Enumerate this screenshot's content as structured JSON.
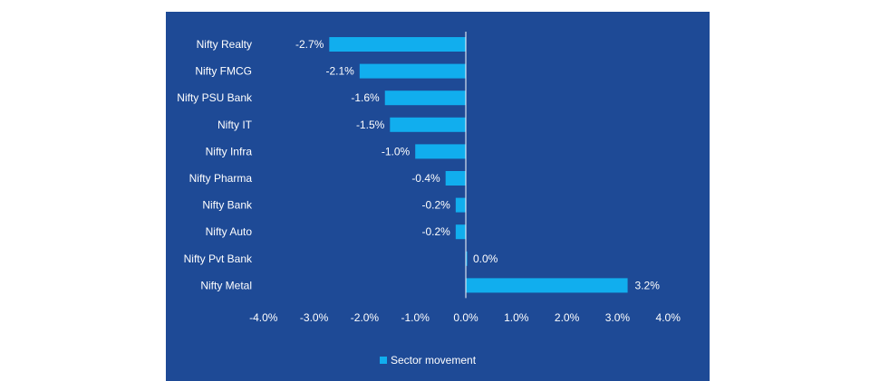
{
  "chart_data": {
    "type": "bar",
    "orientation": "horizontal",
    "categories": [
      "Nifty Realty",
      "Nifty FMCG",
      "Nifty PSU Bank",
      "Nifty IT",
      "Nifty Infra",
      "Nifty Pharma",
      "Nifty Bank",
      "Nifty Auto",
      "Nifty Pvt Bank",
      "Nifty Metal"
    ],
    "series": [
      {
        "name": "Sector movement",
        "values": [
          -2.7,
          -2.1,
          -1.6,
          -1.5,
          -1.0,
          -0.4,
          -0.2,
          -0.2,
          0.0,
          3.2
        ],
        "labels": [
          "-2.7%",
          "-2.1%",
          "-1.6%",
          "-1.5%",
          "-1.0%",
          "-0.4%",
          "-0.2%",
          "-0.2%",
          "0.0%",
          "3.2%"
        ]
      }
    ],
    "x_ticks": [
      -4.0,
      -3.0,
      -2.0,
      -1.0,
      0.0,
      1.0,
      2.0,
      3.0,
      4.0
    ],
    "x_tick_labels": [
      "-4.0%",
      "-3.0%",
      "-2.0%",
      "-1.0%",
      "0.0%",
      "1.0%",
      "2.0%",
      "3.0%",
      "4.0%"
    ],
    "xlim": [
      -4.0,
      4.0
    ],
    "legend_position": "bottom",
    "grid": false,
    "colors": {
      "background": "#1e4a96",
      "bar": "#11aeee",
      "text": "#ffffff",
      "axis": "#ffffff"
    }
  }
}
